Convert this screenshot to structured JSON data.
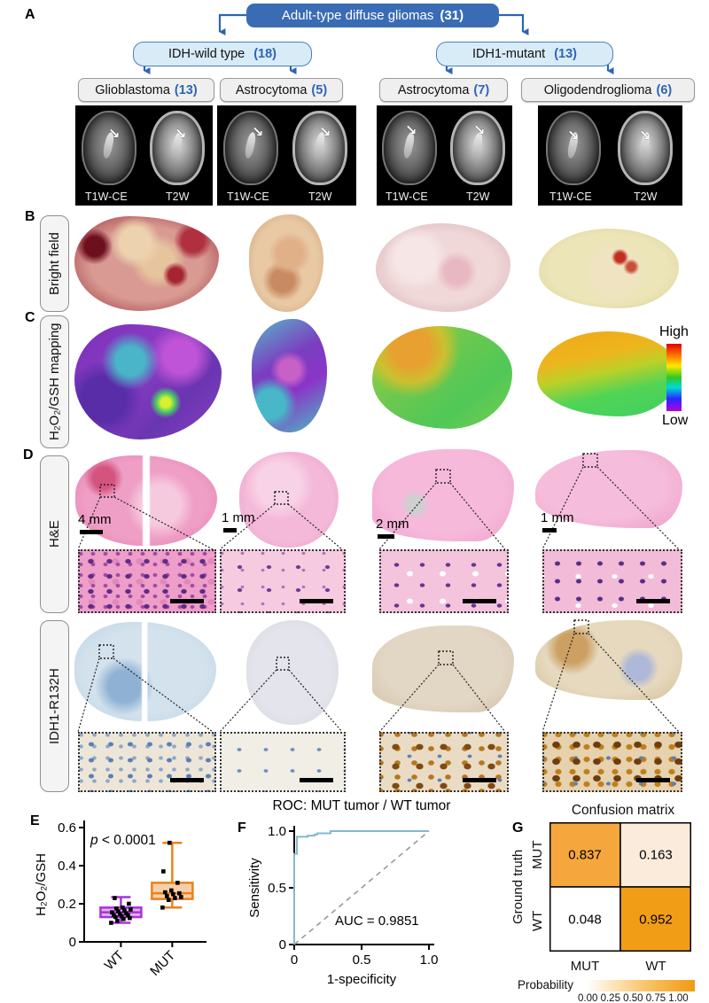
{
  "panels": [
    "A",
    "B",
    "C",
    "D",
    "E",
    "F",
    "G"
  ],
  "flowchart": {
    "root": {
      "label": "Adult-type diffuse gliomas",
      "count": "(31)"
    },
    "level2": [
      {
        "label": "IDH-wild type",
        "count": "(18)"
      },
      {
        "label": "IDH1-mutant",
        "count": "(13)"
      }
    ],
    "level3": [
      {
        "label": "Glioblastoma",
        "count": "(13)"
      },
      {
        "label": "Astrocytoma",
        "count": "(5)"
      },
      {
        "label": "Astrocytoma",
        "count": "(7)"
      },
      {
        "label": "Oligodendroglioma",
        "count": "(6)"
      }
    ]
  },
  "mri": {
    "t1": "T1W-CE",
    "t2": "T2W"
  },
  "rows": {
    "bright_field": "Bright field",
    "mapping": "H₂O₂/GSH mapping",
    "he": "H&E",
    "idh": "IDH1-R132H"
  },
  "colorbar": {
    "high": "High",
    "low": "Low"
  },
  "scale_bars": [
    "4 mm",
    "1 mm",
    "2 mm",
    "1 mm"
  ],
  "chart_data": [
    {
      "id": "boxplot",
      "type": "box",
      "ylabel": "H₂O₂/GSH",
      "ylim": [
        0,
        0.6
      ],
      "yticks": [
        {
          "v": 0,
          "label": "0"
        },
        {
          "v": 0.2,
          "label": "0.2"
        },
        {
          "v": 0.4,
          "label": "0.4"
        },
        {
          "v": 0.6,
          "label": "0.6"
        }
      ],
      "annotation": {
        "italic": "p",
        "text": " < 0.0001"
      },
      "categories": [
        "WT",
        "MUT"
      ],
      "series": [
        {
          "name": "WT",
          "color": "#A933D9",
          "whisker_low": 0.1,
          "q1": 0.13,
          "median": 0.155,
          "q3": 0.18,
          "whisker_high": 0.235,
          "points": [
            0.1,
            0.11,
            0.12,
            0.125,
            0.13,
            0.135,
            0.14,
            0.14,
            0.145,
            0.15,
            0.155,
            0.16,
            0.165,
            0.17,
            0.175,
            0.18,
            0.2,
            0.23
          ]
        },
        {
          "name": "MUT",
          "color": "#E8821E",
          "whisker_low": 0.18,
          "q1": 0.225,
          "median": 0.255,
          "q3": 0.31,
          "whisker_high": 0.52,
          "points": [
            0.18,
            0.22,
            0.23,
            0.235,
            0.24,
            0.25,
            0.255,
            0.26,
            0.27,
            0.31,
            0.37,
            0.52
          ]
        }
      ]
    },
    {
      "id": "roc",
      "type": "line",
      "title": "ROC: MUT tumor / WT tumor",
      "xlabel": "1-specificity",
      "ylabel": "Sensitivity",
      "xticks": [
        {
          "v": 0,
          "label": "0"
        },
        {
          "v": 0.5,
          "label": "0.5"
        },
        {
          "v": 1,
          "label": "1.0"
        }
      ],
      "yticks": [
        {
          "v": 0,
          "label": "0"
        },
        {
          "v": 0.5,
          "label": "0.5"
        },
        {
          "v": 1,
          "label": "1.0"
        }
      ],
      "annotation": "AUC = 0.9851",
      "color": "#85B8CC",
      "diagonal": true,
      "points": [
        [
          0,
          0
        ],
        [
          0,
          0.8
        ],
        [
          0.02,
          0.8
        ],
        [
          0.02,
          0.95
        ],
        [
          0.1,
          0.95
        ],
        [
          0.1,
          0.96
        ],
        [
          0.15,
          0.96
        ],
        [
          0.15,
          0.97
        ],
        [
          0.17,
          0.97
        ],
        [
          0.17,
          0.98
        ],
        [
          0.27,
          0.98
        ],
        [
          0.27,
          1.0
        ],
        [
          1.0,
          1.0
        ]
      ]
    },
    {
      "id": "confusion",
      "type": "heatmap",
      "title": "Confusion matrix",
      "ylabel": "Ground truth",
      "row_labels": [
        "MUT",
        "WT"
      ],
      "col_labels": [
        "MUT",
        "WT"
      ],
      "values": [
        [
          0.837,
          0.163
        ],
        [
          0.048,
          0.952
        ]
      ],
      "cell_colors": [
        [
          "#F5A63C",
          "#FAEBDB"
        ],
        [
          "#FFFFFF",
          "#F29D16"
        ]
      ],
      "colorbar": {
        "label": "Probability",
        "ticks": [
          "0.00",
          "0.25",
          "0.50",
          "0.75",
          "1.00"
        ]
      }
    }
  ]
}
